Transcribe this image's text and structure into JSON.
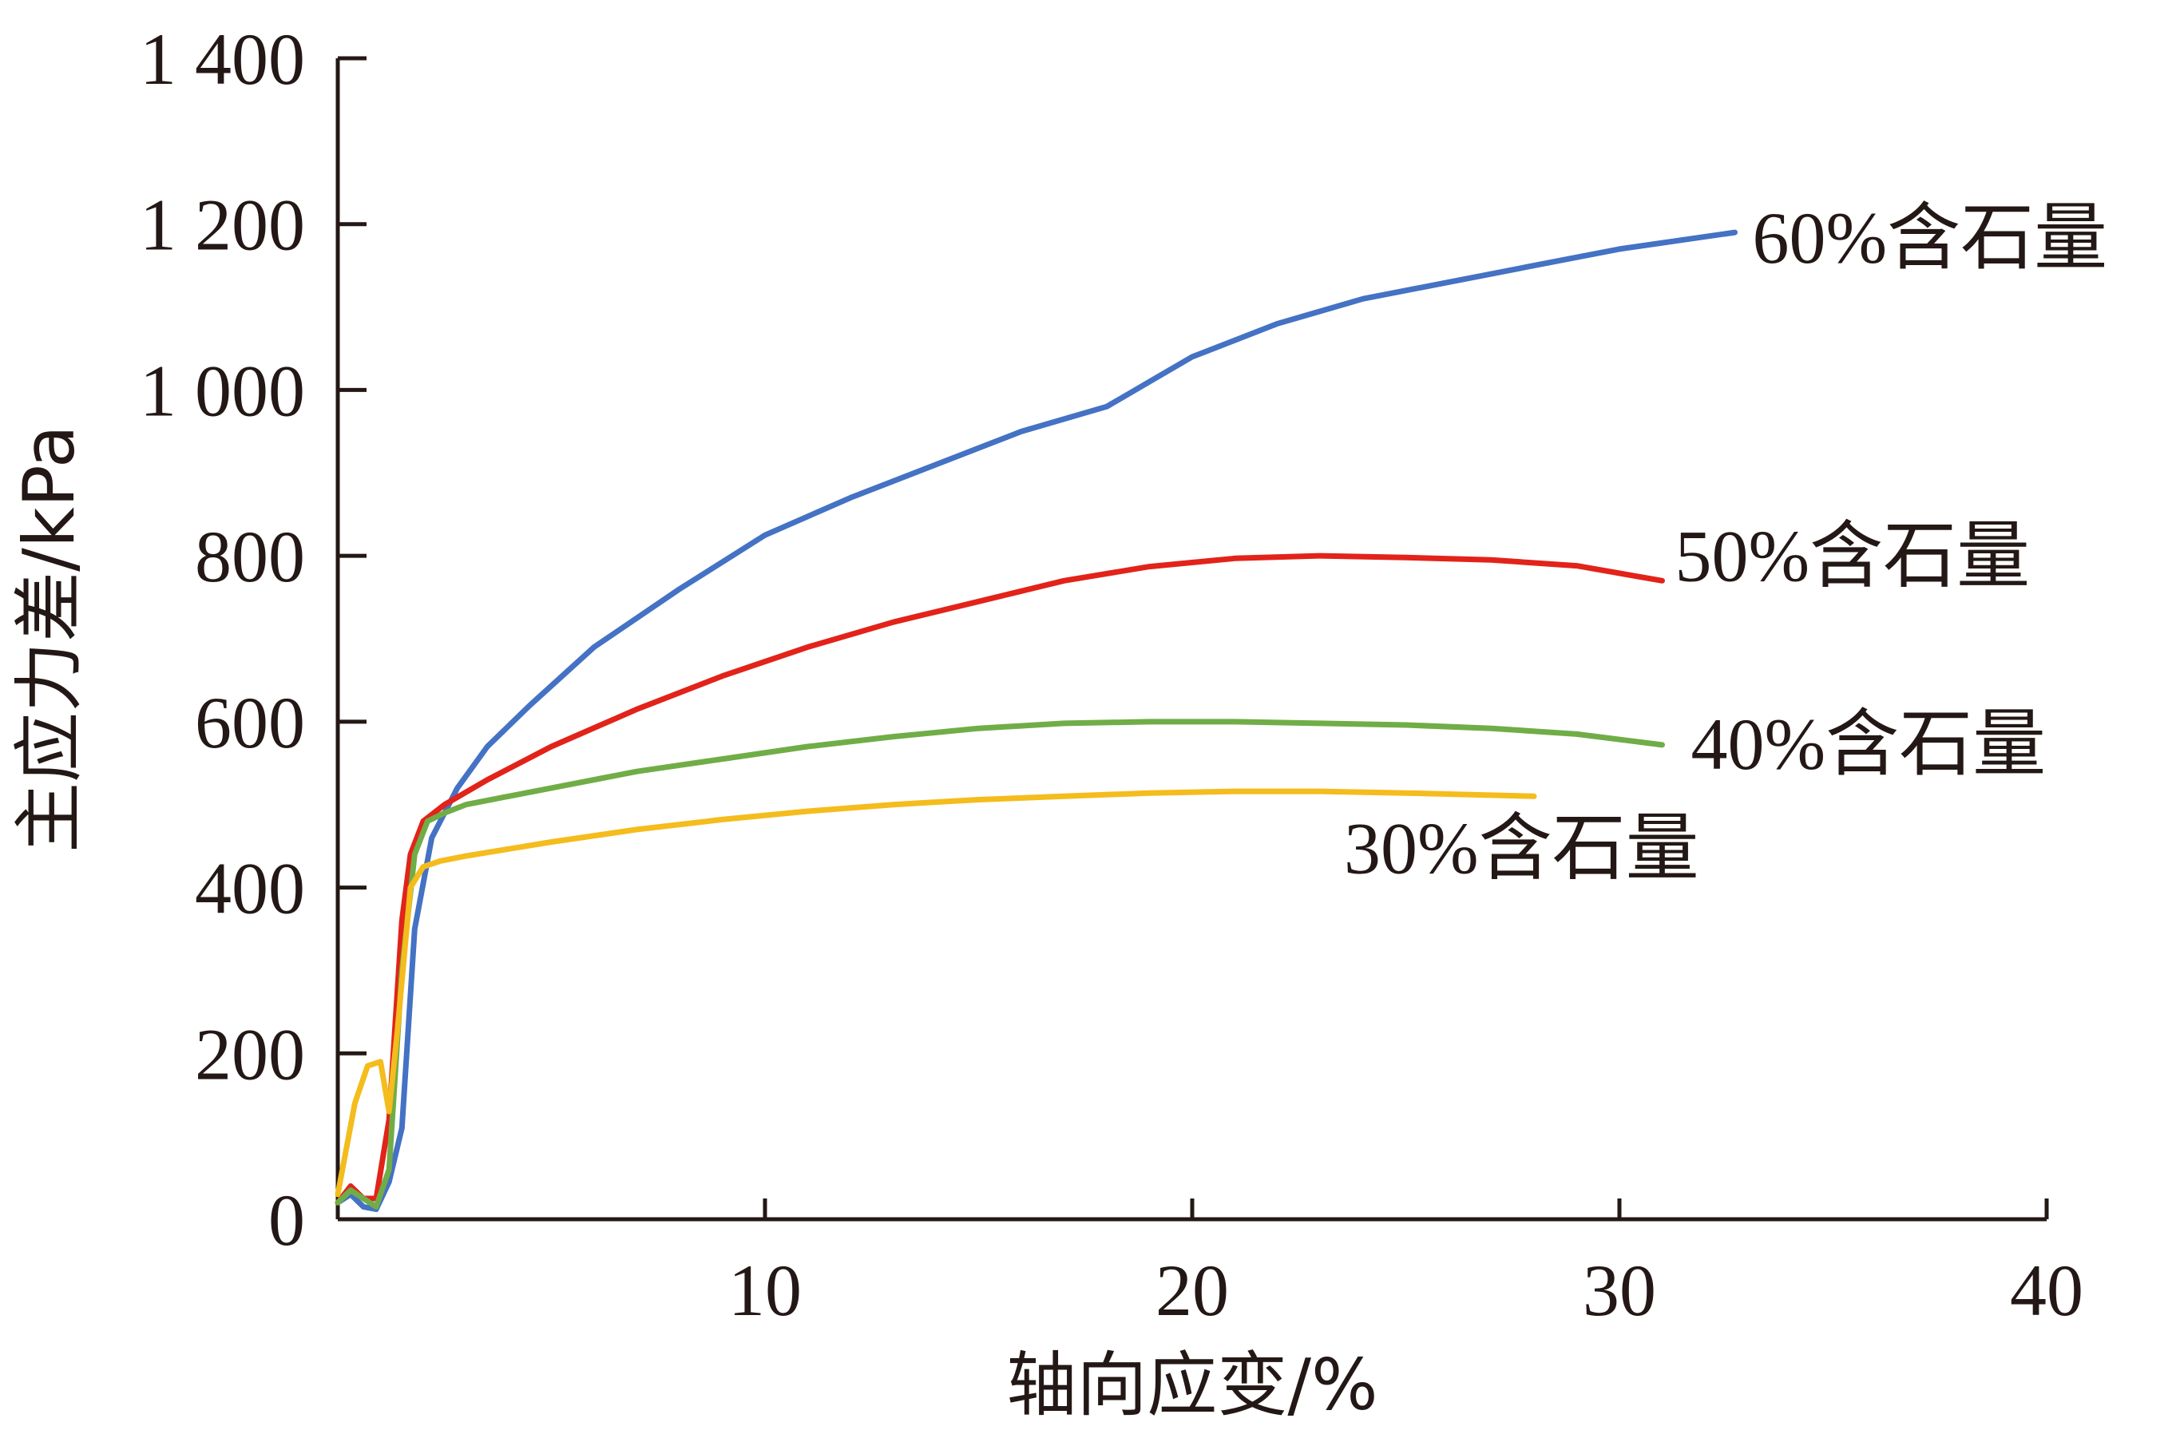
{
  "chart_data": {
    "type": "line",
    "title": "",
    "xlabel": "轴向应变/%",
    "ylabel": "主应力差/kPa",
    "xlim": [
      0,
      40
    ],
    "ylim": [
      0,
      1400
    ],
    "x_ticks": [
      10,
      20,
      30,
      40
    ],
    "x_tick_labels": [
      "10",
      "20",
      "30",
      "40"
    ],
    "y_ticks": [
      0,
      200,
      400,
      600,
      800,
      1000,
      1200,
      1400
    ],
    "y_tick_labels": [
      "0",
      "200",
      "400",
      "600",
      "800",
      "1 000",
      "1 200",
      "1 400"
    ],
    "grid": false,
    "legend": "inline labels at line ends",
    "series": [
      {
        "name": "60%含石量",
        "color": "#4472c4",
        "x": [
          0,
          0.3,
          0.6,
          0.9,
          1.2,
          1.5,
          1.8,
          2.2,
          2.8,
          3.5,
          4.5,
          6,
          8,
          10,
          12,
          14,
          16,
          18,
          18.5,
          19,
          20,
          22,
          24,
          26,
          28,
          30,
          32.7
        ],
        "y": [
          20,
          30,
          15,
          12,
          45,
          110,
          350,
          460,
          520,
          570,
          620,
          690,
          760,
          825,
          870,
          910,
          950,
          980,
          995,
          1010,
          1040,
          1080,
          1110,
          1130,
          1150,
          1170,
          1190
        ]
      },
      {
        "name": "50%含石量",
        "color": "#e2231a",
        "x": [
          0,
          0.3,
          0.6,
          0.9,
          1.2,
          1.5,
          1.7,
          2.0,
          2.5,
          3.5,
          5,
          7,
          9,
          11,
          13,
          15,
          17,
          19,
          21,
          23,
          25,
          27,
          29,
          31
        ],
        "y": [
          20,
          40,
          25,
          25,
          120,
          360,
          440,
          480,
          500,
          530,
          570,
          615,
          655,
          690,
          720,
          745,
          770,
          787,
          797,
          800,
          798,
          795,
          788,
          770
        ]
      },
      {
        "name": "40%含石量",
        "color": "#70ad47",
        "x": [
          0,
          0.3,
          0.6,
          0.9,
          1.2,
          1.5,
          1.8,
          2.1,
          2.5,
          3,
          5,
          7,
          9,
          11,
          13,
          15,
          17,
          19,
          21,
          23,
          25,
          27,
          29,
          31
        ],
        "y": [
          20,
          35,
          25,
          15,
          60,
          300,
          440,
          480,
          490,
          500,
          520,
          540,
          555,
          570,
          582,
          592,
          598,
          600,
          600,
          598,
          596,
          592,
          585,
          572
        ]
      },
      {
        "name": "30%含石量",
        "color": "#f4bc1c",
        "x": [
          0,
          0.4,
          0.7,
          1.0,
          1.2,
          1.4,
          1.7,
          2.0,
          2.4,
          3,
          5,
          7,
          9,
          11,
          13,
          15,
          17,
          19,
          21,
          23,
          25,
          28
        ],
        "y": [
          30,
          140,
          185,
          190,
          130,
          230,
          400,
          425,
          432,
          438,
          455,
          470,
          482,
          492,
          500,
          506,
          510,
          514,
          516,
          516,
          514,
          510
        ]
      }
    ]
  }
}
